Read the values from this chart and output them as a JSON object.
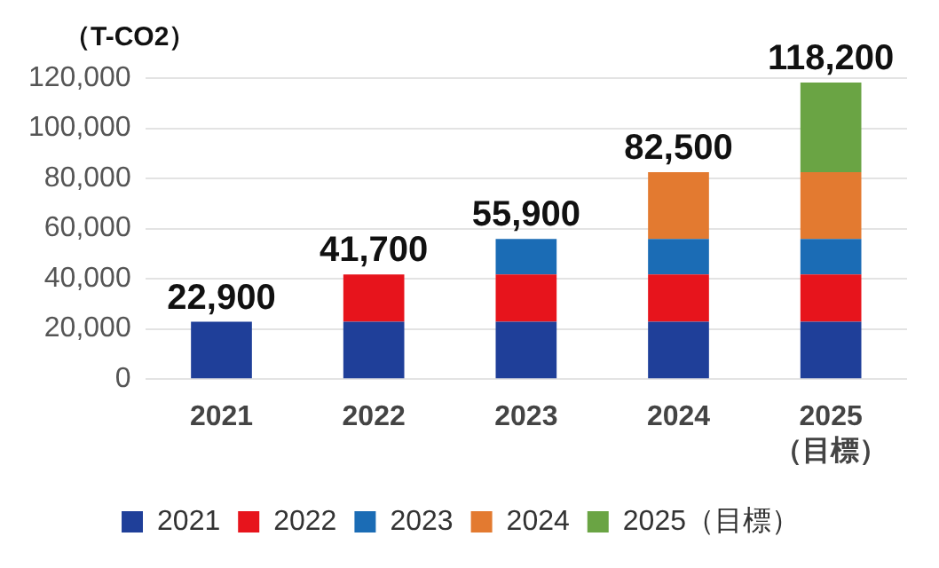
{
  "chart_data": {
    "type": "bar",
    "stacked": true,
    "ylabel": "（T-CO2）",
    "categories": [
      "2021",
      "2022",
      "2023",
      "2024",
      "2025\n（目標）"
    ],
    "series": [
      {
        "name": "2021",
        "color": "#1f3f99",
        "values": [
          22900,
          22900,
          22900,
          22900,
          22900
        ]
      },
      {
        "name": "2022",
        "color": "#e7141c",
        "values": [
          null,
          18800,
          18800,
          18800,
          18800
        ]
      },
      {
        "name": "2023",
        "color": "#1b6cb5",
        "values": [
          null,
          null,
          14200,
          14200,
          14200
        ]
      },
      {
        "name": "2024",
        "color": "#e37a30",
        "values": [
          null,
          null,
          null,
          26600,
          26600
        ]
      },
      {
        "name": "2025（目標）",
        "color": "#6aa444",
        "values": [
          null,
          null,
          null,
          null,
          35700
        ]
      }
    ],
    "totals": [
      "22,900",
      "41,700",
      "55,900",
      "82,500",
      "118,200"
    ],
    "ylim": [
      0,
      120000
    ],
    "yticks": [
      0,
      {
        "value": 20000,
        "label": "20,000"
      },
      {
        "value": 40000,
        "label": "40,000"
      },
      {
        "value": 60000,
        "label": "60,000"
      },
      {
        "value": 80000,
        "label": "80,000"
      },
      {
        "value": 100000,
        "label": "100,000"
      },
      {
        "value": 120000,
        "label": "120,000"
      }
    ],
    "grid": "y",
    "legend": "bottom"
  }
}
